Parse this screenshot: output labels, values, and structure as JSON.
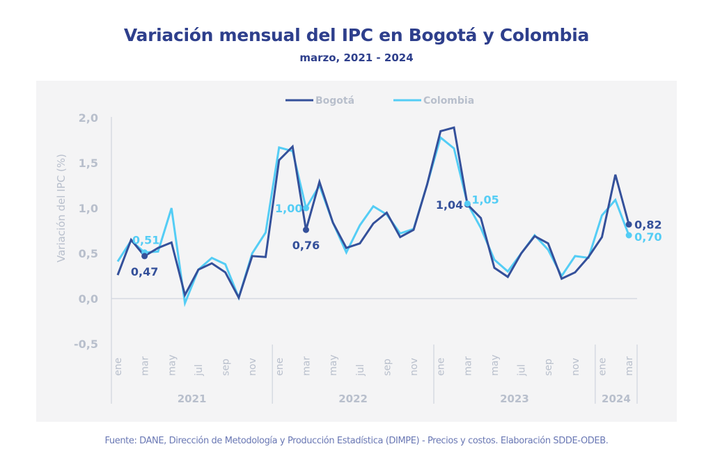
{
  "header": {
    "title": "Variación mensual del IPC en Bogotá y Colombia",
    "subtitle": "marzo, 2021 - 2024"
  },
  "footer": {
    "source": "Fuente: DANE, Dirección de Metodología y Producción Estadística (DIMPE) - Precios y costos. Elaboración SDDE-ODEB."
  },
  "colors": {
    "bogota": "#34509a",
    "colombia": "#54cdf5",
    "axis_text": "#b8bfcc",
    "axis_line": "#cfd4dd",
    "panel_bg": "#f4f4f5"
  },
  "chart_data": {
    "type": "line",
    "title": "Variación mensual del IPC en Bogotá y Colombia",
    "subtitle": "marzo, 2021 - 2024",
    "xlabel": "",
    "ylabel": "Variación del IPC (%)",
    "ylim": [
      -0.5,
      2.0
    ],
    "yticks": [
      2.0,
      1.5,
      1.0,
      0.5,
      0.0,
      -0.5
    ],
    "ytick_labels": [
      "2,0",
      "1,5",
      "1,0",
      "0,5",
      "0,0",
      "-0,5"
    ],
    "grid": false,
    "legend_position": "top-center",
    "x": [
      "ene-2021",
      "feb-2021",
      "mar-2021",
      "abr-2021",
      "may-2021",
      "jun-2021",
      "jul-2021",
      "ago-2021",
      "sep-2021",
      "oct-2021",
      "nov-2021",
      "dic-2021",
      "ene-2022",
      "feb-2022",
      "mar-2022",
      "abr-2022",
      "may-2022",
      "jun-2022",
      "jul-2022",
      "ago-2022",
      "sep-2022",
      "oct-2022",
      "nov-2022",
      "dic-2022",
      "ene-2023",
      "feb-2023",
      "mar-2023",
      "abr-2023",
      "may-2023",
      "jun-2023",
      "jul-2023",
      "ago-2023",
      "sep-2023",
      "oct-2023",
      "nov-2023",
      "dic-2023",
      "ene-2024",
      "feb-2024",
      "mar-2024"
    ],
    "month_tick_labels": [
      {
        "index": 0,
        "label": "ene"
      },
      {
        "index": 2,
        "label": "mar"
      },
      {
        "index": 4,
        "label": "may"
      },
      {
        "index": 6,
        "label": "jul"
      },
      {
        "index": 8,
        "label": "sep"
      },
      {
        "index": 10,
        "label": "nov"
      },
      {
        "index": 12,
        "label": "ene"
      },
      {
        "index": 14,
        "label": "mar"
      },
      {
        "index": 16,
        "label": "may"
      },
      {
        "index": 18,
        "label": "jul"
      },
      {
        "index": 20,
        "label": "sep"
      },
      {
        "index": 22,
        "label": "nov"
      },
      {
        "index": 24,
        "label": "ene"
      },
      {
        "index": 26,
        "label": "mar"
      },
      {
        "index": 28,
        "label": "may"
      },
      {
        "index": 30,
        "label": "jul"
      },
      {
        "index": 32,
        "label": "sep"
      },
      {
        "index": 34,
        "label": "nov"
      },
      {
        "index": 36,
        "label": "ene"
      },
      {
        "index": 38,
        "label": "mar"
      }
    ],
    "year_groups": [
      {
        "label": "2021",
        "start": 0,
        "end": 11
      },
      {
        "label": "2022",
        "start": 12,
        "end": 23
      },
      {
        "label": "2023",
        "start": 24,
        "end": 35
      },
      {
        "label": "2024",
        "start": 36,
        "end": 38
      }
    ],
    "series": [
      {
        "name": "Bogotá",
        "values": [
          0.26,
          0.65,
          0.47,
          0.56,
          0.62,
          0.04,
          0.32,
          0.39,
          0.29,
          0.01,
          0.47,
          0.46,
          1.53,
          1.68,
          0.76,
          1.29,
          0.84,
          0.56,
          0.61,
          0.83,
          0.95,
          0.68,
          0.76,
          1.26,
          1.85,
          1.89,
          1.04,
          0.89,
          0.34,
          0.24,
          0.5,
          0.69,
          0.61,
          0.22,
          0.29,
          0.46,
          0.68,
          1.37,
          0.82
        ]
      },
      {
        "name": "Colombia",
        "values": [
          0.41,
          0.64,
          0.51,
          0.52,
          1.0,
          -0.05,
          0.32,
          0.45,
          0.38,
          0.01,
          0.5,
          0.73,
          1.67,
          1.63,
          1.0,
          1.25,
          0.84,
          0.51,
          0.81,
          1.02,
          0.93,
          0.72,
          0.77,
          1.26,
          1.78,
          1.66,
          1.05,
          0.78,
          0.43,
          0.3,
          0.5,
          0.7,
          0.54,
          0.25,
          0.47,
          0.45,
          0.92,
          1.09,
          0.7
        ]
      }
    ],
    "annotations": [
      {
        "series": "Colombia",
        "index": 2,
        "text": "0,51"
      },
      {
        "series": "Bogotá",
        "index": 2,
        "text": "0,47"
      },
      {
        "series": "Colombia",
        "index": 14,
        "text": "1,00"
      },
      {
        "series": "Bogotá",
        "index": 14,
        "text": "0,76"
      },
      {
        "series": "Bogotá",
        "index": 26,
        "text": "1,04"
      },
      {
        "series": "Colombia",
        "index": 26,
        "text": "1,05"
      },
      {
        "series": "Bogotá",
        "index": 38,
        "text": "0,82"
      },
      {
        "series": "Colombia",
        "index": 38,
        "text": "0,70"
      }
    ]
  }
}
